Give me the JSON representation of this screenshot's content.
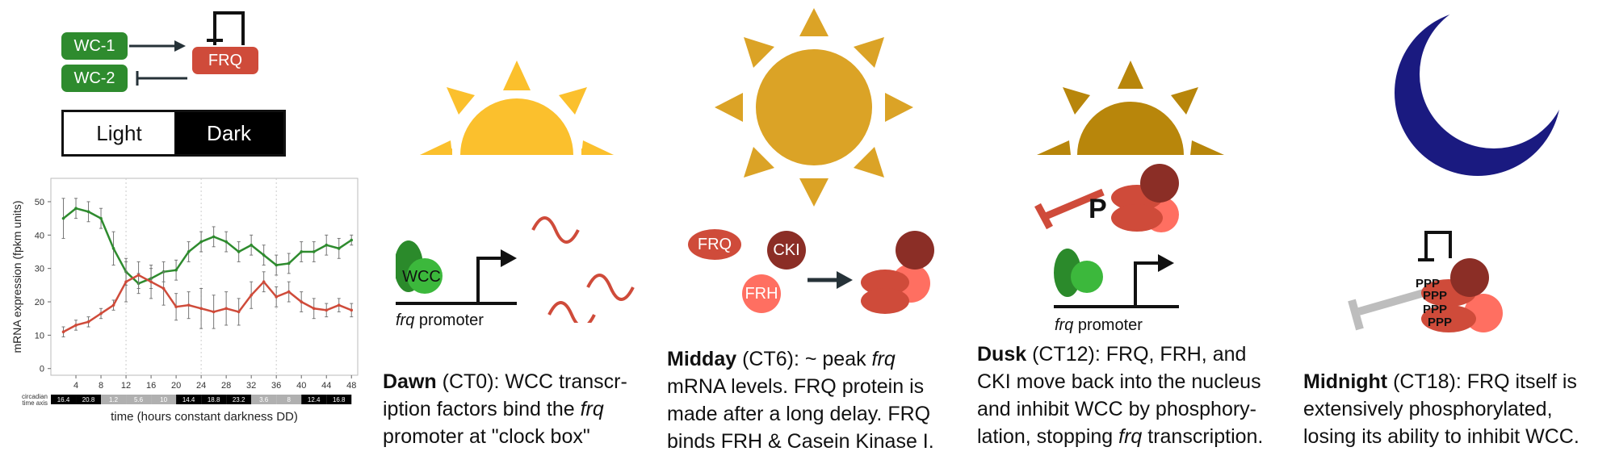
{
  "network": {
    "wc1": "WC-1",
    "wc2": "WC-2",
    "frq": "FRQ"
  },
  "light_dark": {
    "light": "Light",
    "dark": "Dark"
  },
  "colors": {
    "wc_green": "#2e8b2e",
    "frq_red": "#cf4b3a",
    "sun_dawn": "#fbc02d",
    "sun_midday": "#dba326",
    "sun_dusk": "#b8860b",
    "moon": "#1a1a80",
    "frh": "#ff6f61",
    "cki": "#8b2e26"
  },
  "chart_data": {
    "type": "line",
    "xlabel": "time (hours constant darkness DD)",
    "ylabel": "mRNA expression (fpkm units)",
    "x_ticks": [
      4,
      8,
      12,
      16,
      20,
      24,
      28,
      32,
      36,
      40,
      44,
      48
    ],
    "y_ticks": [
      0,
      10,
      20,
      30,
      40,
      50
    ],
    "xlim": [
      0,
      49
    ],
    "ylim": [
      -2,
      57
    ],
    "grid": "vertical dotted lines at 12, 24, 36",
    "x": [
      2,
      4,
      6,
      8,
      10,
      12,
      14,
      16,
      18,
      20,
      22,
      24,
      26,
      28,
      30,
      32,
      34,
      36,
      38,
      40,
      42,
      44,
      46,
      48
    ],
    "series": [
      {
        "color": "#2e8b2e",
        "values": [
          45,
          48,
          47,
          45,
          36,
          29,
          25.5,
          27,
          29,
          29.5,
          35,
          38,
          39.5,
          38,
          35,
          37,
          34,
          31,
          31.5,
          35,
          35,
          37,
          36,
          38.5
        ],
        "errors": [
          6,
          3,
          3,
          3,
          5,
          4,
          3,
          3,
          3,
          3,
          3,
          3,
          3,
          3,
          3,
          3,
          3,
          3,
          3,
          3,
          3,
          3,
          3,
          1.5
        ]
      },
      {
        "color": "#cf4b3a",
        "values": [
          11,
          13,
          14,
          16.5,
          19,
          26,
          28,
          26,
          24,
          18.5,
          19,
          18,
          17,
          18,
          17,
          22,
          26,
          21.5,
          23,
          20,
          18,
          17.5,
          19,
          17.5
        ],
        "errors": [
          1.5,
          1.5,
          1.5,
          1.5,
          1.5,
          6,
          4,
          5,
          5,
          4,
          4,
          6,
          5,
          5,
          4,
          4,
          3,
          3,
          3,
          3,
          3,
          2,
          2,
          2
        ]
      }
    ],
    "circadian_axis": {
      "label_1": "circadian",
      "label_2": "time axis",
      "cells": [
        "16.4",
        "20.8",
        "1.2",
        "5.6",
        "10",
        "14.4",
        "18.8",
        "23.2",
        "3.6",
        "8",
        "12.4",
        "16.8"
      ],
      "shading": [
        "dark",
        "dark",
        "light",
        "light",
        "light",
        "dark",
        "dark",
        "dark",
        "light",
        "light",
        "dark",
        "dark"
      ]
    }
  },
  "panels": {
    "dawn": {
      "wcc": "WCC",
      "promoter_italic": "frq",
      "promoter_rest": " promoter",
      "title": "Dawn",
      "l1": " (CT0): WCC transcr-",
      "l2": "iption factors bind the ",
      "l2_italic": "frq",
      "l3": "promoter at \"clock box\""
    },
    "midday": {
      "frq": "FRQ",
      "cki": "CKI",
      "frh": "FRH",
      "title": "Midday",
      "l1": " (CT6): ~ peak ",
      "l1_italic": "frq",
      "l2": "mRNA levels. FRQ protein is",
      "l3": "made after a long delay. FRQ",
      "l4": "binds FRH & Casein Kinase I."
    },
    "dusk": {
      "p": "P",
      "promoter_italic": "frq",
      "promoter_rest": " promoter",
      "title": "Dusk",
      "l1": " (CT12): FRQ, FRH, and",
      "l2": "CKI move back into the nucleus",
      "l3": "and inhibit WCC by phosphory-",
      "l4": "lation, stopping ",
      "l4_italic": "frq",
      "l4_end": " transcription."
    },
    "midnight": {
      "ppp1": "PPP",
      "ppp2": "PPP",
      "ppp3": "PPP",
      "ppp4": "PPP",
      "title": "Midnight",
      "l1": " (CT18): FRQ itself is",
      "l2": "extensively phosphorylated,",
      "l3": "losing its ability to inhibit WCC."
    }
  }
}
